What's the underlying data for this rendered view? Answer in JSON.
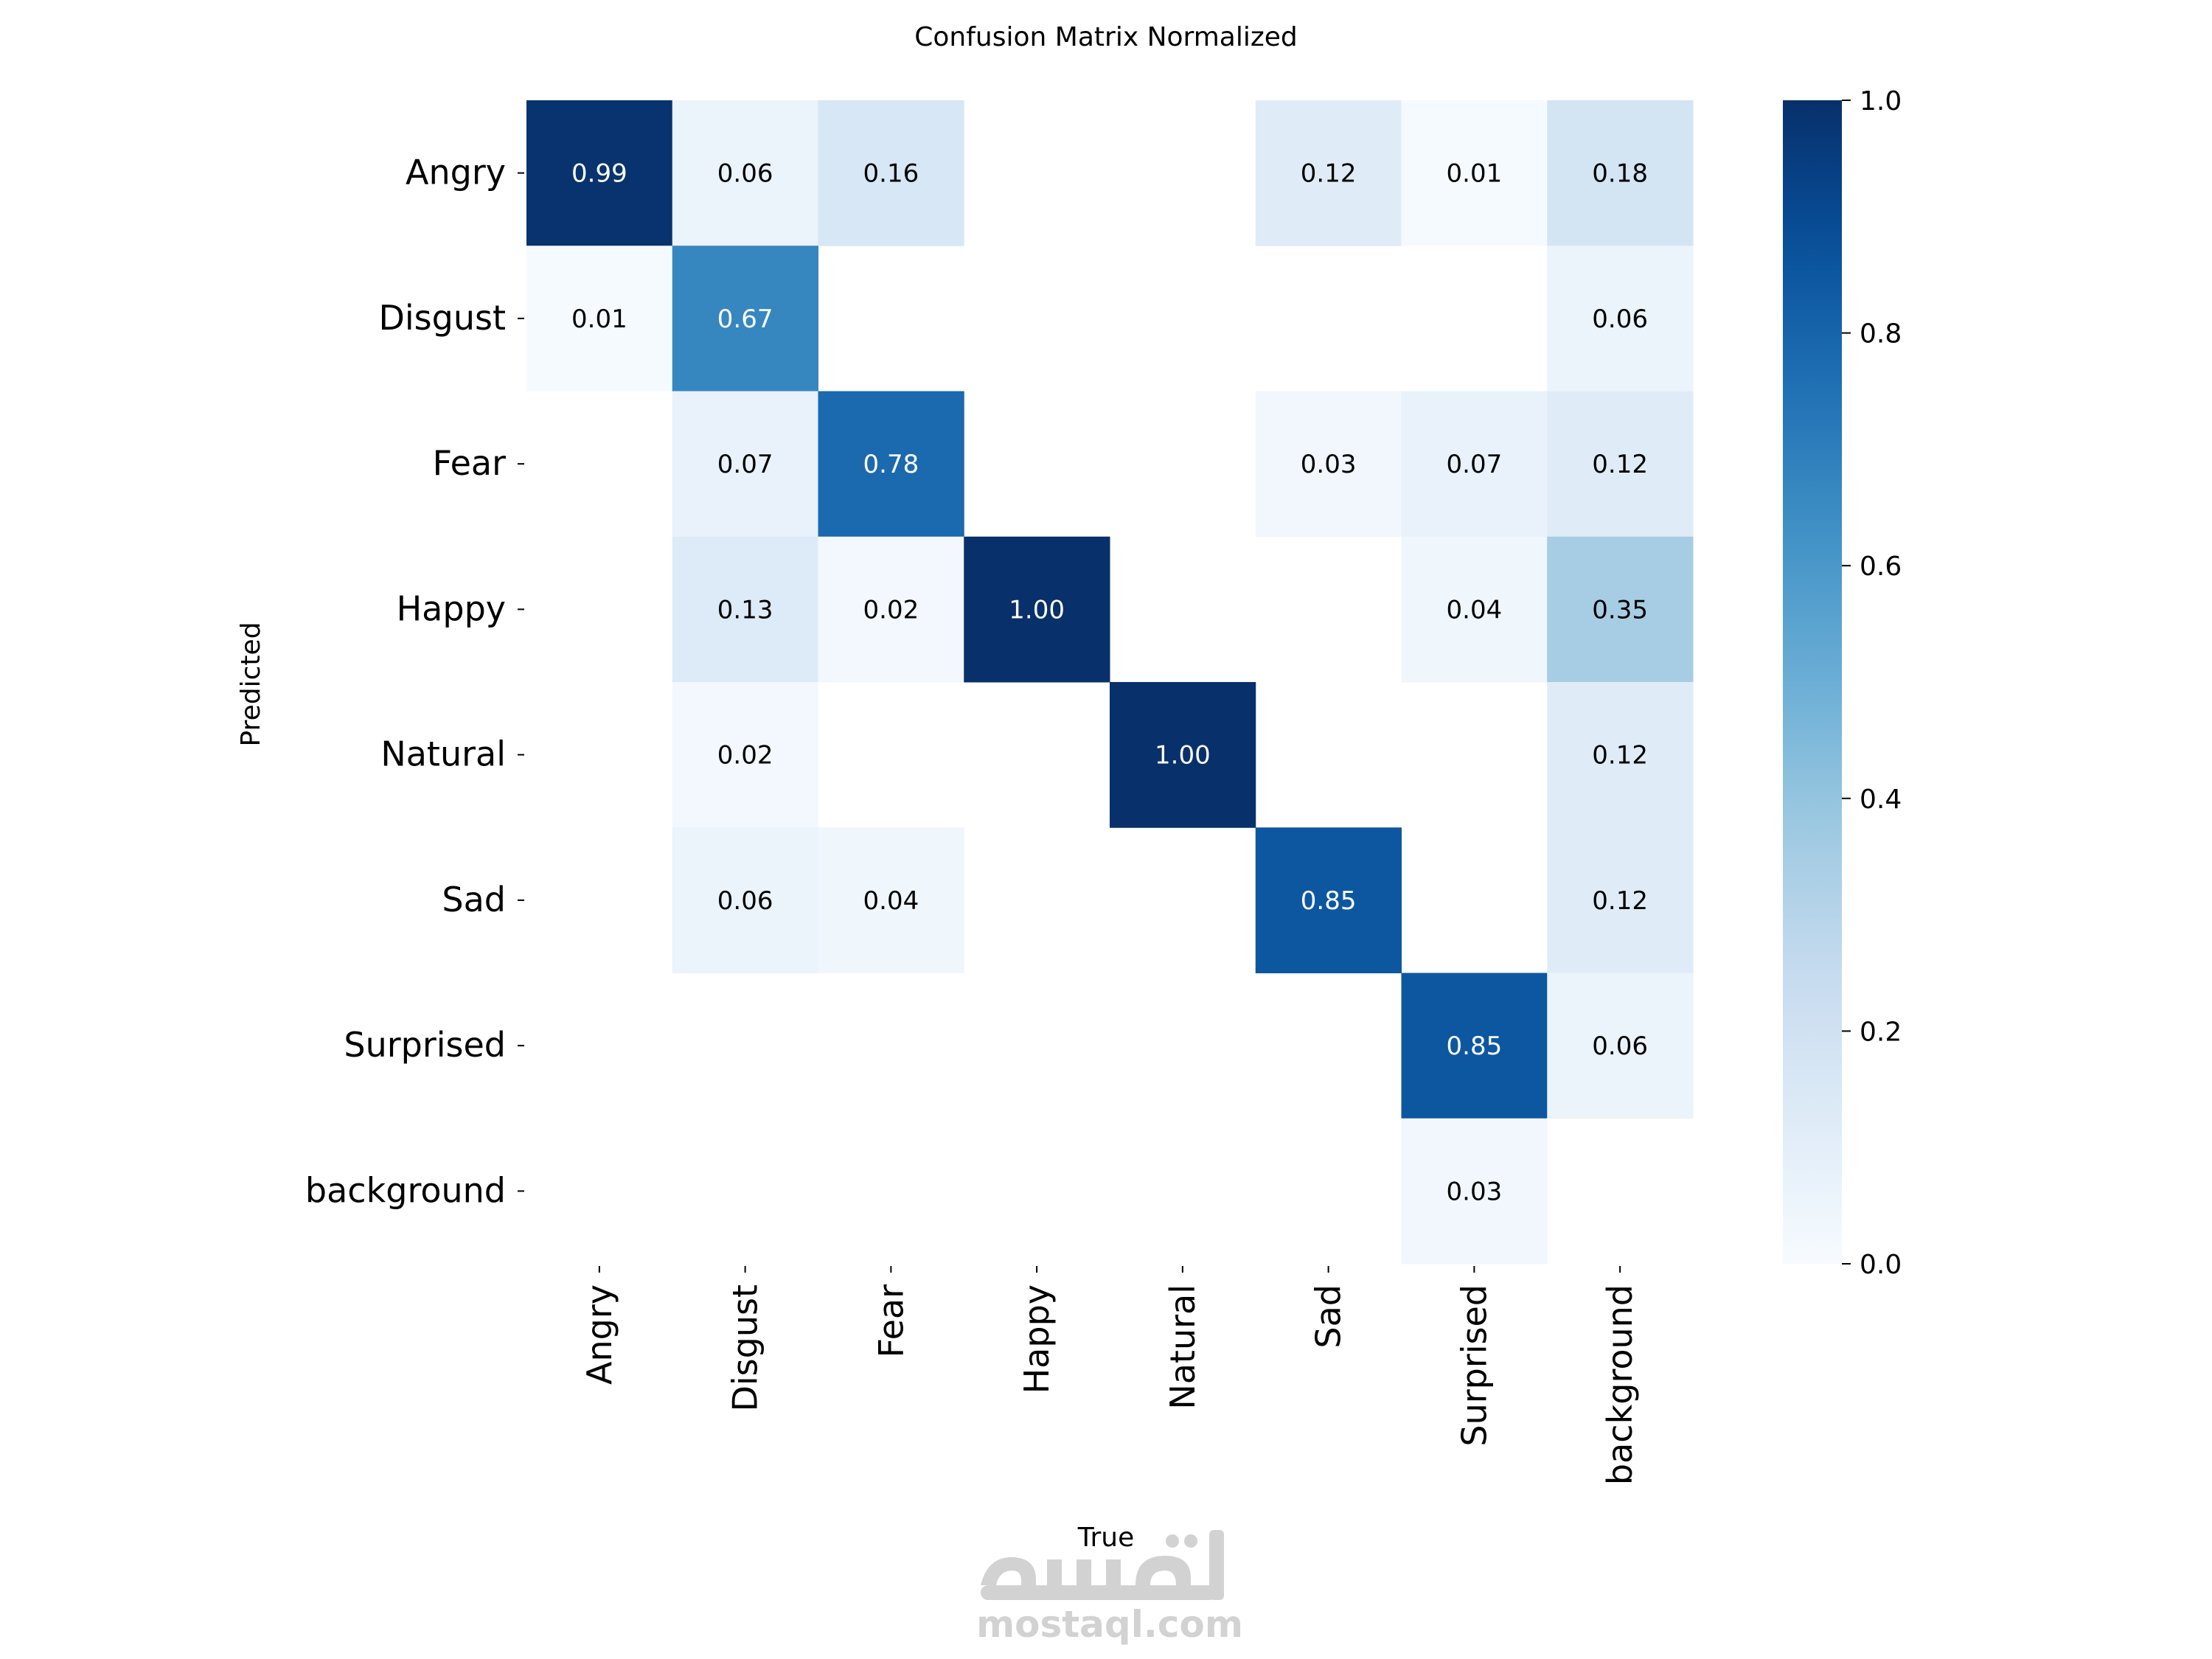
{
  "chart_data": {
    "type": "heatmap",
    "title": "Confusion Matrix Normalized",
    "xlabel": "True",
    "ylabel": "Predicted",
    "x_categories": [
      "Angry",
      "Disgust",
      "Fear",
      "Happy",
      "Natural",
      "Sad",
      "Surprised",
      "background"
    ],
    "y_categories": [
      "Angry",
      "Disgust",
      "Fear",
      "Happy",
      "Natural",
      "Sad",
      "Surprised",
      "background"
    ],
    "values": [
      [
        0.99,
        0.06,
        0.16,
        null,
        null,
        0.12,
        0.01,
        0.18
      ],
      [
        0.01,
        0.67,
        null,
        null,
        null,
        null,
        null,
        0.06
      ],
      [
        null,
        0.07,
        0.78,
        null,
        null,
        0.03,
        0.07,
        0.12
      ],
      [
        null,
        0.13,
        0.02,
        1.0,
        null,
        null,
        0.04,
        0.35
      ],
      [
        null,
        0.02,
        null,
        null,
        1.0,
        null,
        null,
        0.12
      ],
      [
        null,
        0.06,
        0.04,
        null,
        null,
        0.85,
        null,
        0.12
      ],
      [
        null,
        null,
        null,
        null,
        null,
        null,
        0.85,
        0.06
      ],
      [
        null,
        null,
        null,
        null,
        null,
        null,
        0.03,
        null
      ]
    ],
    "value_format": "0.00",
    "colorscale": "Blues",
    "colorbar": {
      "range": [
        0.0,
        1.0
      ],
      "ticks": [
        "0.0",
        "0.2",
        "0.4",
        "0.6",
        "0.8",
        "1.0"
      ]
    }
  },
  "watermark": {
    "logo_text": "مستقل",
    "site": "mostaql.com"
  }
}
